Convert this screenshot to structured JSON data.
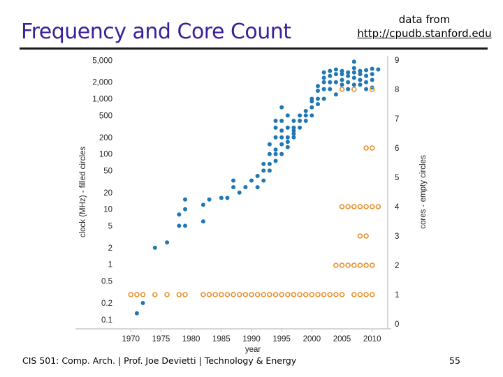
{
  "slide": {
    "title": "Frequency and Core Count",
    "source_prefix": "data from",
    "source_url": "http://cpudb.stanford.edu",
    "footer": "CIS 501: Comp. Arch.  |  Prof. Joe Devietti  |  Technology & Energy",
    "page_number": "55"
  },
  "colors": {
    "title": "#3a1f9a",
    "clock_points": "#1f77b4",
    "core_points": "#e8902a",
    "axis": "#c8c8c8"
  },
  "chart_data": {
    "type": "scatter",
    "xlabel": "year",
    "ylabel_left": "clock (MHz) - filled circles",
    "ylabel_right": "cores - empty circles",
    "x_ticks": [
      "1970",
      "1975",
      "1980",
      "1985",
      "1990",
      "1995",
      "2000",
      "2005",
      "2010"
    ],
    "left_ticks": [
      "5,000",
      "2,000",
      "1,000",
      "500",
      "200",
      "100",
      "50",
      "20",
      "10",
      "5",
      "2",
      "1",
      "0.5",
      "0.2",
      "0.1"
    ],
    "right_ticks": [
      "9",
      "8",
      "7",
      "6",
      "5",
      "4",
      "3",
      "2",
      "1",
      "0"
    ],
    "xlim": [
      1968,
      2012
    ],
    "left_ylim_log": [
      0.07,
      6000
    ],
    "right_ylim": [
      0,
      9
    ],
    "series": [
      {
        "name": "clock (MHz)",
        "marker": "filled",
        "points": [
          [
            1971,
            0.13
          ],
          [
            1972,
            0.2
          ],
          [
            1974,
            2.0
          ],
          [
            1976,
            2.5
          ],
          [
            1978,
            5
          ],
          [
            1978,
            8
          ],
          [
            1979,
            5
          ],
          [
            1979,
            10
          ],
          [
            1979,
            15
          ],
          [
            1982,
            6
          ],
          [
            1982,
            12
          ],
          [
            1983,
            15
          ],
          [
            1985,
            16
          ],
          [
            1986,
            16
          ],
          [
            1987,
            33
          ],
          [
            1987,
            25
          ],
          [
            1988,
            20
          ],
          [
            1989,
            25
          ],
          [
            1990,
            33
          ],
          [
            1991,
            25
          ],
          [
            1991,
            40
          ],
          [
            1992,
            33
          ],
          [
            1992,
            50
          ],
          [
            1992,
            66
          ],
          [
            1993,
            50
          ],
          [
            1993,
            66
          ],
          [
            1993,
            100
          ],
          [
            1993,
            150
          ],
          [
            1994,
            75
          ],
          [
            1994,
            100
          ],
          [
            1994,
            120
          ],
          [
            1994,
            200
          ],
          [
            1994,
            300
          ],
          [
            1994,
            400
          ],
          [
            1995,
            100
          ],
          [
            1995,
            150
          ],
          [
            1995,
            200
          ],
          [
            1995,
            266
          ],
          [
            1995,
            400
          ],
          [
            1995,
            700
          ],
          [
            1996,
            133
          ],
          [
            1996,
            166
          ],
          [
            1996,
            200
          ],
          [
            1996,
            300
          ],
          [
            1996,
            500
          ],
          [
            1997,
            200
          ],
          [
            1997,
            233
          ],
          [
            1997,
            266
          ],
          [
            1997,
            300
          ],
          [
            1997,
            400
          ],
          [
            1998,
            300
          ],
          [
            1998,
            400
          ],
          [
            1998,
            500
          ],
          [
            1999,
            400
          ],
          [
            1999,
            500
          ],
          [
            1999,
            600
          ],
          [
            2000,
            500
          ],
          [
            2000,
            700
          ],
          [
            2000,
            900
          ],
          [
            2000,
            1000
          ],
          [
            2001,
            800
          ],
          [
            2001,
            1000
          ],
          [
            2001,
            1400
          ],
          [
            2001,
            1700
          ],
          [
            2002,
            1000
          ],
          [
            2002,
            1500
          ],
          [
            2002,
            2000
          ],
          [
            2002,
            2400
          ],
          [
            2002,
            3000
          ],
          [
            2003,
            1500
          ],
          [
            2003,
            2000
          ],
          [
            2003,
            2600
          ],
          [
            2003,
            3200
          ],
          [
            2004,
            1200
          ],
          [
            2004,
            2000
          ],
          [
            2004,
            2800
          ],
          [
            2004,
            3400
          ],
          [
            2005,
            1800
          ],
          [
            2005,
            2200
          ],
          [
            2005,
            2800
          ],
          [
            2005,
            3200
          ],
          [
            2006,
            1500
          ],
          [
            2006,
            2000
          ],
          [
            2006,
            2600
          ],
          [
            2006,
            3000
          ],
          [
            2007,
            1800
          ],
          [
            2007,
            2400
          ],
          [
            2007,
            3000
          ],
          [
            2007,
            3600
          ],
          [
            2007,
            4700
          ],
          [
            2008,
            1800
          ],
          [
            2008,
            2200
          ],
          [
            2008,
            2800
          ],
          [
            2008,
            3200
          ],
          [
            2009,
            1500
          ],
          [
            2009,
            2000
          ],
          [
            2009,
            2600
          ],
          [
            2009,
            3300
          ],
          [
            2010,
            1600
          ],
          [
            2010,
            2200
          ],
          [
            2010,
            2800
          ],
          [
            2010,
            3500
          ],
          [
            2011,
            3400
          ]
        ]
      },
      {
        "name": "cores",
        "marker": "empty",
        "points": [
          [
            1970,
            1
          ],
          [
            1971,
            1
          ],
          [
            1972,
            1
          ],
          [
            1974,
            1
          ],
          [
            1976,
            1
          ],
          [
            1978,
            1
          ],
          [
            1979,
            1
          ],
          [
            1982,
            1
          ],
          [
            1983,
            1
          ],
          [
            1984,
            1
          ],
          [
            1985,
            1
          ],
          [
            1986,
            1
          ],
          [
            1987,
            1
          ],
          [
            1988,
            1
          ],
          [
            1989,
            1
          ],
          [
            1990,
            1
          ],
          [
            1991,
            1
          ],
          [
            1992,
            1
          ],
          [
            1993,
            1
          ],
          [
            1994,
            1
          ],
          [
            1995,
            1
          ],
          [
            1996,
            1
          ],
          [
            1997,
            1
          ],
          [
            1998,
            1
          ],
          [
            1999,
            1
          ],
          [
            2000,
            1
          ],
          [
            2001,
            1
          ],
          [
            2002,
            1
          ],
          [
            2003,
            1
          ],
          [
            2004,
            1
          ],
          [
            2005,
            1
          ],
          [
            2007,
            1
          ],
          [
            2008,
            1
          ],
          [
            2009,
            1
          ],
          [
            2010,
            1
          ],
          [
            2004,
            2
          ],
          [
            2005,
            2
          ],
          [
            2006,
            2
          ],
          [
            2007,
            2
          ],
          [
            2008,
            2
          ],
          [
            2009,
            2
          ],
          [
            2010,
            2
          ],
          [
            2008,
            3
          ],
          [
            2009,
            3
          ],
          [
            2005,
            4
          ],
          [
            2006,
            4
          ],
          [
            2007,
            4
          ],
          [
            2008,
            4
          ],
          [
            2009,
            4
          ],
          [
            2010,
            4
          ],
          [
            2011,
            4
          ],
          [
            2009,
            6
          ],
          [
            2010,
            6
          ],
          [
            2005,
            8
          ],
          [
            2007,
            8
          ],
          [
            2010,
            8
          ]
        ]
      }
    ]
  }
}
